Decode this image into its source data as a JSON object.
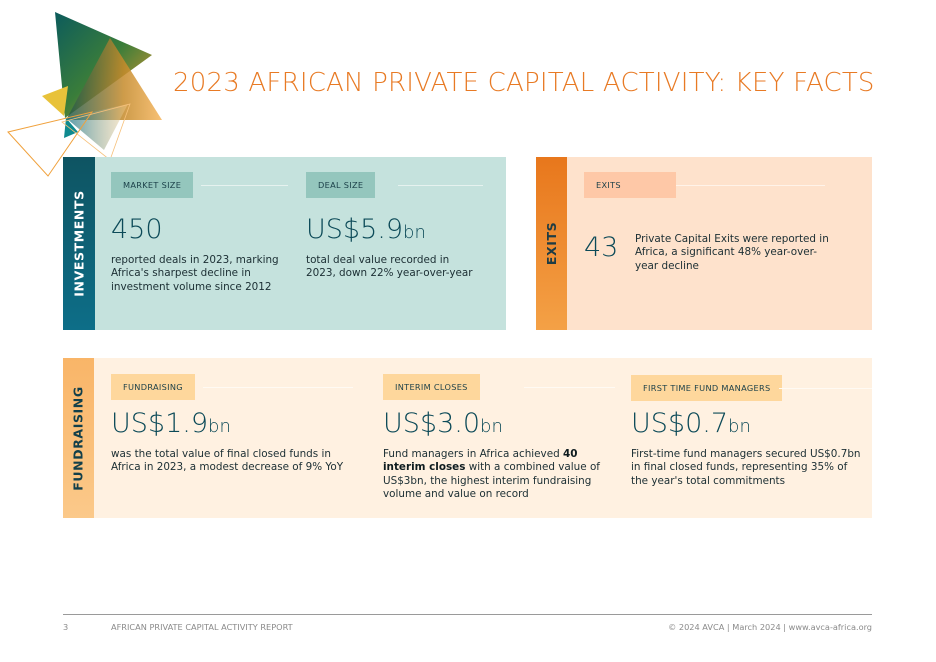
{
  "header": {
    "title": "2023 AFRICAN PRIVATE CAPITAL ACTIVITY: KEY FACTS",
    "logo_icon": "triangles-logo-icon"
  },
  "colors": {
    "accent_orange": "#e87a24",
    "teal_dark": "#0e5462",
    "teal_light": "#c5e2dd",
    "peach_light": "#fee2cc",
    "cream_light": "#fff1e1"
  },
  "investments": {
    "tab_label": "INVESTMENTS",
    "market_size": {
      "label": "MARKET SIZE",
      "value": "450",
      "unit": "",
      "description": "reported deals in 2023, marking Africa's sharpest decline in investment volume since 2012"
    },
    "deal_size": {
      "label": "DEAL SIZE",
      "value": "US$5.9",
      "unit": "bn",
      "description": "total deal value recorded in 2023, down 22% year-over-year"
    }
  },
  "exits": {
    "tab_label": "EXITS",
    "label": "EXITS",
    "value": "43",
    "description": "Private Capital Exits were reported in Africa, a significant 48% year-over-year decline"
  },
  "fundraising": {
    "tab_label": "FUNDRAISING",
    "fundraising": {
      "label": "FUNDRAISING",
      "value": "US$1.9",
      "unit": "bn",
      "description": "was the total value of final closed funds in Africa in 2023, a modest decrease of 9% YoY"
    },
    "interim_closes": {
      "label": "INTERIM CLOSES",
      "value": "US$3.0",
      "unit": "bn",
      "description_before": "Fund managers in Africa achieved ",
      "description_bold": "40 interim closes",
      "description_after": " with a combined value of US$3bn, the highest interim fundraising volume and value on record"
    },
    "first_time": {
      "label": "FIRST TIME FUND MANAGERS",
      "value": "US$0.7",
      "unit": "bn",
      "description": "First-time fund managers secured US$0.7bn in final closed funds, representing 35% of the year's total commitments"
    }
  },
  "footer": {
    "page_number": "3",
    "report_name": "AFRICAN PRIVATE CAPITAL ACTIVITY REPORT",
    "copyright": "© 2024 AVCA | March 2024 | www.avca-africa.org"
  }
}
